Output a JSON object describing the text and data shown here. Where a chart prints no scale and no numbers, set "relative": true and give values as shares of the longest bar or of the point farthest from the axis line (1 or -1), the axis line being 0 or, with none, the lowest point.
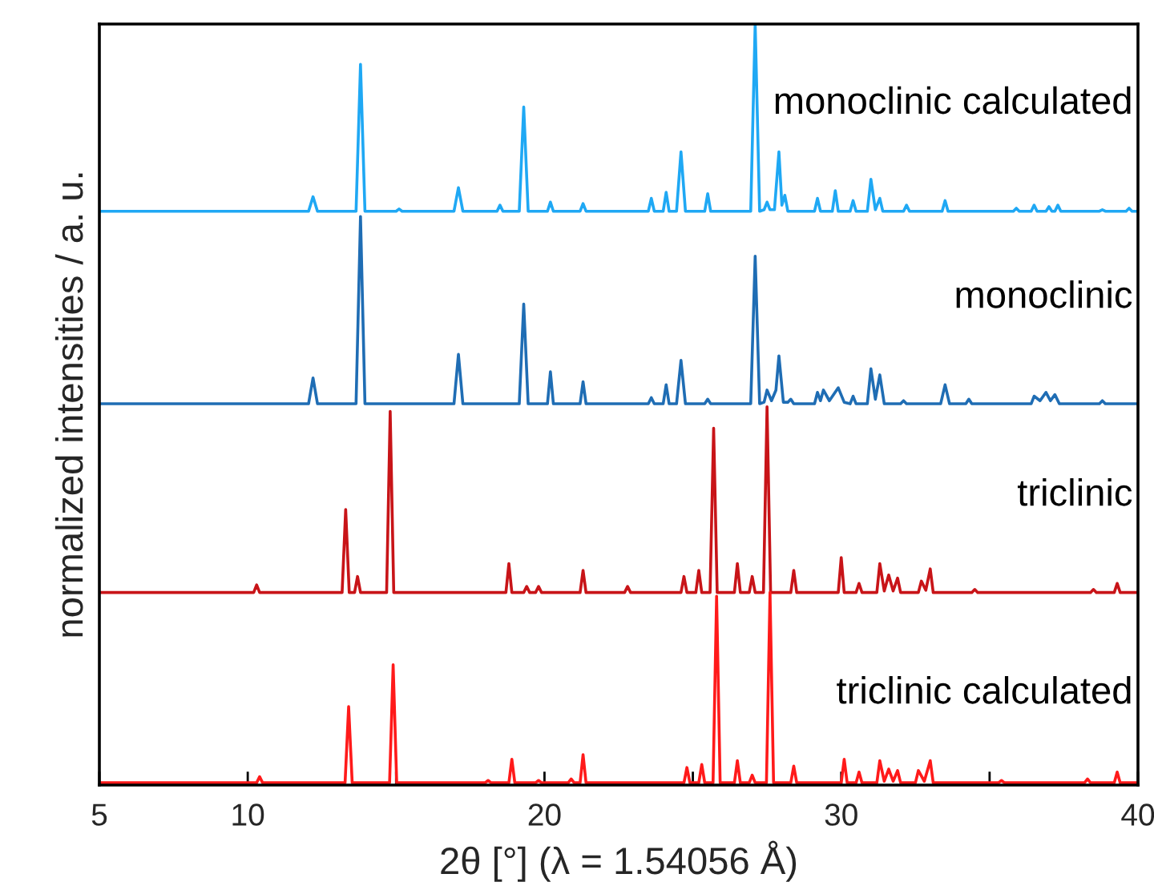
{
  "chart_data": {
    "type": "line",
    "relative": true,
    "xlabel": "2θ [°] (λ = 1.54056 Å)",
    "ylabel": "normalized intensities / a. u.",
    "xlim": [
      5,
      40
    ],
    "xticks": [
      5,
      10,
      {
        "value": 15,
        "label": null
      },
      20,
      {
        "value": 25,
        "label": null
      },
      30,
      {
        "value": 35,
        "label": null
      },
      40
    ],
    "tick_labels": "x",
    "grid": false,
    "legend": false,
    "series": [
      {
        "name": "monoclinic calculated",
        "color": "#1fa8f4",
        "x": [
          5,
          12.05,
          12.2,
          12.35,
          13.65,
          13.8,
          13.95,
          15.0,
          15.1,
          15.2,
          16.95,
          17.1,
          17.25,
          18.4,
          18.5,
          18.6,
          19.15,
          19.3,
          19.45,
          20.1,
          20.2,
          20.3,
          21.2,
          21.3,
          21.4,
          23.5,
          23.6,
          23.7,
          24.0,
          24.1,
          24.2,
          24.45,
          24.6,
          24.75,
          25.4,
          25.5,
          25.6,
          26.95,
          27.1,
          27.25,
          27.4,
          27.5,
          27.6,
          27.75,
          27.9,
          28.0,
          28.1,
          28.2,
          29.1,
          29.2,
          29.3,
          29.7,
          29.8,
          29.9,
          30.3,
          30.4,
          30.5,
          30.88,
          31.0,
          31.15,
          31.3,
          31.4,
          32.1,
          32.2,
          32.3,
          33.4,
          33.5,
          33.6,
          35.8,
          35.9,
          36.0,
          36.4,
          36.5,
          36.6,
          36.9,
          37.0,
          37.1,
          37.2,
          37.3,
          37.4,
          38.7,
          38.8,
          38.9,
          39.6,
          39.7,
          39.8,
          40
        ],
        "values": [
          0.754,
          0.754,
          0.773,
          0.754,
          0.754,
          0.947,
          0.754,
          0.754,
          0.757,
          0.754,
          0.754,
          0.785,
          0.754,
          0.754,
          0.762,
          0.754,
          0.754,
          0.891,
          0.754,
          0.754,
          0.766,
          0.754,
          0.754,
          0.764,
          0.754,
          0.754,
          0.771,
          0.754,
          0.754,
          0.779,
          0.754,
          0.754,
          0.832,
          0.754,
          0.754,
          0.777,
          0.754,
          0.754,
          1.0,
          0.754,
          0.756,
          0.766,
          0.756,
          0.756,
          0.832,
          0.762,
          0.775,
          0.754,
          0.754,
          0.771,
          0.754,
          0.754,
          0.781,
          0.754,
          0.754,
          0.768,
          0.754,
          0.754,
          0.796,
          0.756,
          0.771,
          0.754,
          0.754,
          0.762,
          0.754,
          0.754,
          0.768,
          0.754,
          0.754,
          0.758,
          0.754,
          0.754,
          0.762,
          0.754,
          0.754,
          0.76,
          0.754,
          0.754,
          0.762,
          0.754,
          0.754,
          0.756,
          0.754,
          0.754,
          0.758,
          0.754,
          0.754
        ]
      },
      {
        "name": "monoclinic",
        "color": "#1f6db4",
        "x": [
          5,
          12.05,
          12.2,
          12.35,
          13.65,
          13.8,
          13.95,
          16.95,
          17.1,
          17.25,
          19.15,
          19.3,
          19.45,
          20.1,
          20.2,
          20.3,
          21.2,
          21.3,
          21.4,
          23.5,
          23.6,
          23.7,
          24.0,
          24.1,
          24.2,
          24.45,
          24.6,
          24.75,
          25.4,
          25.5,
          25.6,
          26.95,
          27.1,
          27.25,
          27.4,
          27.5,
          27.65,
          27.8,
          27.9,
          28.05,
          28.2,
          28.3,
          28.4,
          29.1,
          29.2,
          29.3,
          29.4,
          29.6,
          29.9,
          30.1,
          30.3,
          30.4,
          30.5,
          30.88,
          31.0,
          31.15,
          31.3,
          31.45,
          32.0,
          32.1,
          32.2,
          33.35,
          33.5,
          33.65,
          34.2,
          34.3,
          34.4,
          36.4,
          36.5,
          36.7,
          36.9,
          37.05,
          37.2,
          37.35,
          38.7,
          38.8,
          38.9,
          40
        ],
        "values": [
          0.501,
          0.501,
          0.535,
          0.501,
          0.501,
          0.747,
          0.501,
          0.501,
          0.566,
          0.501,
          0.501,
          0.632,
          0.501,
          0.501,
          0.543,
          0.501,
          0.501,
          0.53,
          0.501,
          0.501,
          0.509,
          0.501,
          0.501,
          0.526,
          0.501,
          0.501,
          0.558,
          0.501,
          0.501,
          0.507,
          0.501,
          0.501,
          0.695,
          0.501,
          0.503,
          0.519,
          0.505,
          0.519,
          0.564,
          0.503,
          0.503,
          0.507,
          0.501,
          0.501,
          0.516,
          0.505,
          0.519,
          0.505,
          0.522,
          0.503,
          0.501,
          0.511,
          0.501,
          0.501,
          0.547,
          0.507,
          0.539,
          0.501,
          0.501,
          0.505,
          0.501,
          0.501,
          0.526,
          0.501,
          0.501,
          0.507,
          0.501,
          0.501,
          0.511,
          0.505,
          0.516,
          0.505,
          0.513,
          0.501,
          0.501,
          0.505,
          0.501,
          0.501
        ]
      },
      {
        "name": "triclinic",
        "color": "#c81418",
        "x": [
          5,
          10.2,
          10.3,
          10.4,
          13.18,
          13.3,
          13.42,
          13.6,
          13.7,
          13.8,
          14.68,
          14.8,
          14.92,
          18.7,
          18.8,
          18.9,
          19.3,
          19.4,
          19.5,
          19.7,
          19.8,
          19.9,
          21.2,
          21.3,
          21.4,
          22.7,
          22.8,
          22.9,
          24.6,
          24.7,
          24.8,
          25.1,
          25.2,
          25.3,
          25.58,
          25.7,
          25.82,
          26.4,
          26.5,
          26.6,
          26.9,
          27.0,
          27.1,
          27.38,
          27.5,
          27.62,
          28.3,
          28.4,
          28.5,
          29.9,
          30.0,
          30.1,
          30.5,
          30.6,
          30.7,
          31.2,
          31.3,
          31.45,
          31.6,
          31.75,
          31.9,
          32.0,
          32.6,
          32.7,
          32.85,
          33.0,
          33.1,
          34.4,
          34.5,
          34.6,
          38.4,
          38.5,
          38.6,
          39.2,
          39.3,
          39.4,
          40
        ],
        "values": [
          0.253,
          0.253,
          0.263,
          0.253,
          0.253,
          0.362,
          0.253,
          0.253,
          0.274,
          0.253,
          0.253,
          0.491,
          0.253,
          0.253,
          0.291,
          0.253,
          0.253,
          0.261,
          0.253,
          0.253,
          0.261,
          0.253,
          0.253,
          0.282,
          0.253,
          0.253,
          0.261,
          0.253,
          0.253,
          0.274,
          0.253,
          0.253,
          0.282,
          0.253,
          0.253,
          0.469,
          0.253,
          0.253,
          0.291,
          0.253,
          0.253,
          0.274,
          0.253,
          0.253,
          0.497,
          0.253,
          0.253,
          0.282,
          0.253,
          0.253,
          0.299,
          0.253,
          0.253,
          0.265,
          0.253,
          0.253,
          0.291,
          0.255,
          0.276,
          0.255,
          0.272,
          0.253,
          0.253,
          0.268,
          0.256,
          0.284,
          0.253,
          0.253,
          0.257,
          0.253,
          0.253,
          0.257,
          0.253,
          0.253,
          0.265,
          0.253,
          0.253
        ]
      },
      {
        "name": "triclinic calculated",
        "color": "#ff1a1a",
        "x": [
          5,
          10.3,
          10.4,
          10.5,
          13.28,
          13.4,
          13.52,
          14.78,
          14.9,
          15.02,
          18.0,
          18.1,
          18.2,
          18.8,
          18.9,
          19.0,
          19.7,
          19.8,
          19.9,
          20.8,
          20.9,
          21.0,
          21.2,
          21.3,
          21.4,
          24.7,
          24.8,
          24.9,
          25.2,
          25.3,
          25.4,
          25.68,
          25.8,
          25.92,
          26.4,
          26.5,
          26.6,
          26.9,
          27.0,
          27.1,
          27.48,
          27.6,
          27.72,
          28.3,
          28.4,
          28.5,
          30.0,
          30.1,
          30.2,
          30.5,
          30.6,
          30.7,
          31.2,
          31.3,
          31.45,
          31.6,
          31.75,
          31.9,
          32.0,
          32.5,
          32.6,
          32.8,
          33.0,
          33.1,
          35.3,
          35.4,
          35.5,
          38.2,
          38.3,
          38.4,
          39.2,
          39.3,
          39.4,
          40
        ],
        "values": [
          0.003,
          0.003,
          0.011,
          0.003,
          0.003,
          0.103,
          0.003,
          0.003,
          0.158,
          0.003,
          0.003,
          0.006,
          0.003,
          0.003,
          0.034,
          0.003,
          0.003,
          0.006,
          0.003,
          0.003,
          0.008,
          0.003,
          0.003,
          0.04,
          0.003,
          0.003,
          0.023,
          0.003,
          0.003,
          0.027,
          0.003,
          0.003,
          0.248,
          0.003,
          0.003,
          0.032,
          0.003,
          0.003,
          0.013,
          0.003,
          0.003,
          0.253,
          0.003,
          0.003,
          0.025,
          0.003,
          0.003,
          0.034,
          0.003,
          0.003,
          0.017,
          0.003,
          0.003,
          0.032,
          0.005,
          0.021,
          0.005,
          0.019,
          0.003,
          0.003,
          0.019,
          0.005,
          0.032,
          0.003,
          0.003,
          0.006,
          0.003,
          0.003,
          0.008,
          0.003,
          0.003,
          0.017,
          0.003,
          0.003
        ]
      }
    ]
  }
}
